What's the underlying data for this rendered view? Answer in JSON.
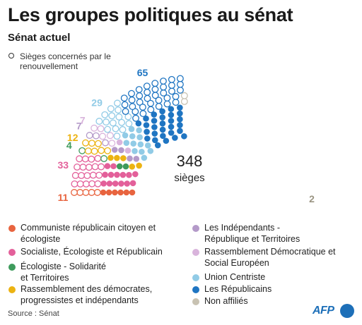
{
  "title": "Les groupes politiques au sénat",
  "subtitle": "Sénat actuel",
  "note": "Sièges concernés par le renouvellement",
  "source": "Source : Sénat",
  "logo": "AFP",
  "chart_data": {
    "type": "parliament",
    "total": 348,
    "total_label": "sièges",
    "groups": [
      {
        "name": "Communiste républicain citoyen et écologiste",
        "seats": 11,
        "color": "#e8643f"
      },
      {
        "name": "Socialiste, Écologiste et Républicain",
        "seats": 33,
        "color": "#e3609a"
      },
      {
        "name": "Écologiste - Solidarité et Territoires",
        "seats": 4,
        "color": "#3e9b5c"
      },
      {
        "name": "Rassemblement des démocrates, progressistes et indépendants",
        "seats": 12,
        "color": "#ecb312"
      },
      {
        "name": "Les Indépendants - République et Territoires",
        "seats": 7,
        "color": "#b49ac9"
      },
      {
        "name": "Rassemblement Démocratique et Social Européen",
        "seats": 7,
        "color": "#d9b4dc"
      },
      {
        "name": "Union Centriste",
        "seats": 29,
        "color": "#91cbe6"
      },
      {
        "name": "Les Républicains",
        "seats": 65,
        "color": "#1f75c2"
      },
      {
        "name": "Non affiliés",
        "seats": 2,
        "color": "#c8c2b2"
      }
    ],
    "outer_labels": [
      "11",
      "33",
      "4",
      "12",
      "7",
      "7",
      "29",
      "65",
      "2"
    ]
  }
}
